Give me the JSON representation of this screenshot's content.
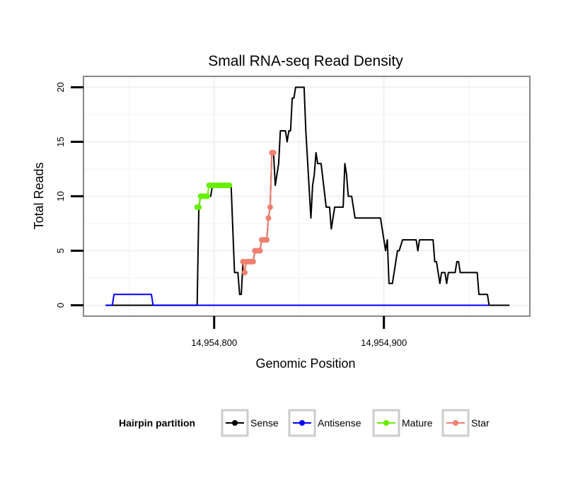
{
  "chart_data": {
    "type": "line",
    "title": "Small RNA-seq Read Density",
    "xlabel": "Genomic Position",
    "ylabel": "Total Reads",
    "xlim": [
      14954723,
      14954986
    ],
    "ylim": [
      -1,
      21
    ],
    "grid": true,
    "x_ticks": [
      {
        "value": 14954800,
        "label": "14,954,800"
      },
      {
        "value": 14954900,
        "label": "14,954,900"
      }
    ],
    "y_ticks": [
      {
        "value": 0,
        "label": "0"
      },
      {
        "value": 5,
        "label": "5"
      },
      {
        "value": 10,
        "label": "10"
      },
      {
        "value": 15,
        "label": "15"
      },
      {
        "value": 20,
        "label": "20"
      }
    ],
    "legend": {
      "title": "Hairpin partition",
      "position": "bottom",
      "entries": [
        "Sense",
        "Antisense",
        "Mature",
        "Star"
      ]
    },
    "series": [
      {
        "name": "Sense",
        "color": "#000000",
        "points": [
          [
            14954736,
            0
          ],
          [
            14954790,
            0
          ],
          [
            14954791,
            9
          ],
          [
            14954792,
            10
          ],
          [
            14954798,
            10
          ],
          [
            14954799,
            11
          ],
          [
            14954810,
            11
          ],
          [
            14954812,
            3
          ],
          [
            14954814,
            3
          ],
          [
            14954815,
            1
          ],
          [
            14954816,
            1
          ],
          [
            14954817,
            4
          ],
          [
            14954823,
            4
          ],
          [
            14954824,
            5
          ],
          [
            14954827,
            5
          ],
          [
            14954828,
            6
          ],
          [
            14954831,
            6
          ],
          [
            14954832,
            8
          ],
          [
            14954833,
            9
          ],
          [
            14954834,
            14
          ],
          [
            14954835,
            14
          ],
          [
            14954836,
            11
          ],
          [
            14954838,
            13
          ],
          [
            14954839,
            16
          ],
          [
            14954842,
            16
          ],
          [
            14954843,
            15
          ],
          [
            14954844,
            16
          ],
          [
            14954845,
            16
          ],
          [
            14954846,
            19
          ],
          [
            14954847,
            19
          ],
          [
            14954848,
            20
          ],
          [
            14954853,
            20
          ],
          [
            14954854,
            16
          ],
          [
            14954857,
            8
          ],
          [
            14954858,
            11
          ],
          [
            14954859,
            12
          ],
          [
            14954860,
            14
          ],
          [
            14954861,
            13
          ],
          [
            14954863,
            13
          ],
          [
            14954866,
            9
          ],
          [
            14954868,
            9
          ],
          [
            14954869,
            7
          ],
          [
            14954871,
            9
          ],
          [
            14954876,
            9
          ],
          [
            14954877,
            13
          ],
          [
            14954878,
            12
          ],
          [
            14954879,
            10
          ],
          [
            14954881,
            10
          ],
          [
            14954883,
            8
          ],
          [
            14954898,
            8
          ],
          [
            14954900,
            6
          ],
          [
            14954901,
            5
          ],
          [
            14954902,
            6
          ],
          [
            14954903,
            2
          ],
          [
            14954905,
            2
          ],
          [
            14954906,
            3
          ],
          [
            14954908,
            5
          ],
          [
            14954909,
            5
          ],
          [
            14954911,
            6
          ],
          [
            14954919,
            6
          ],
          [
            14954920,
            5
          ],
          [
            14954921,
            6
          ],
          [
            14954929,
            6
          ],
          [
            14954930,
            4
          ],
          [
            14954931,
            4
          ],
          [
            14954933,
            2
          ],
          [
            14954934,
            3
          ],
          [
            14954936,
            3
          ],
          [
            14954937,
            2
          ],
          [
            14954938,
            3
          ],
          [
            14954942,
            3
          ],
          [
            14954943,
            4
          ],
          [
            14954944,
            4
          ],
          [
            14954945,
            3
          ],
          [
            14954955,
            3
          ],
          [
            14954956,
            1
          ],
          [
            14954961,
            1
          ],
          [
            14954962,
            0
          ],
          [
            14954974,
            0
          ]
        ]
      },
      {
        "name": "Antisense",
        "color": "#0000ff",
        "points": [
          [
            14954736,
            0
          ],
          [
            14954740,
            0
          ],
          [
            14954741,
            1
          ],
          [
            14954763,
            1
          ],
          [
            14954764,
            0
          ],
          [
            14954962,
            0
          ]
        ]
      },
      {
        "name": "Mature",
        "color": "#66ee00",
        "points": [
          [
            14954790,
            9
          ],
          [
            14954791,
            9
          ],
          [
            14954792,
            10
          ],
          [
            14954793,
            10
          ],
          [
            14954794,
            10
          ],
          [
            14954795,
            10
          ],
          [
            14954796,
            10
          ],
          [
            14954797,
            11
          ],
          [
            14954798,
            11
          ],
          [
            14954799,
            11
          ],
          [
            14954800,
            11
          ],
          [
            14954801,
            11
          ],
          [
            14954802,
            11
          ],
          [
            14954803,
            11
          ],
          [
            14954804,
            11
          ],
          [
            14954805,
            11
          ],
          [
            14954806,
            11
          ],
          [
            14954807,
            11
          ],
          [
            14954808,
            11
          ],
          [
            14954809,
            11
          ]
        ]
      },
      {
        "name": "Star",
        "color": "#f08070",
        "points": [
          [
            14954817,
            4
          ],
          [
            14954818,
            3
          ],
          [
            14954819,
            4
          ],
          [
            14954820,
            4
          ],
          [
            14954821,
            4
          ],
          [
            14954822,
            4
          ],
          [
            14954823,
            4
          ],
          [
            14954824,
            5
          ],
          [
            14954825,
            5
          ],
          [
            14954826,
            5
          ],
          [
            14954827,
            5
          ],
          [
            14954828,
            6
          ],
          [
            14954829,
            6
          ],
          [
            14954830,
            6
          ],
          [
            14954831,
            6
          ],
          [
            14954832,
            8
          ],
          [
            14954833,
            9
          ],
          [
            14954834,
            14
          ],
          [
            14954835,
            14
          ]
        ]
      }
    ]
  }
}
